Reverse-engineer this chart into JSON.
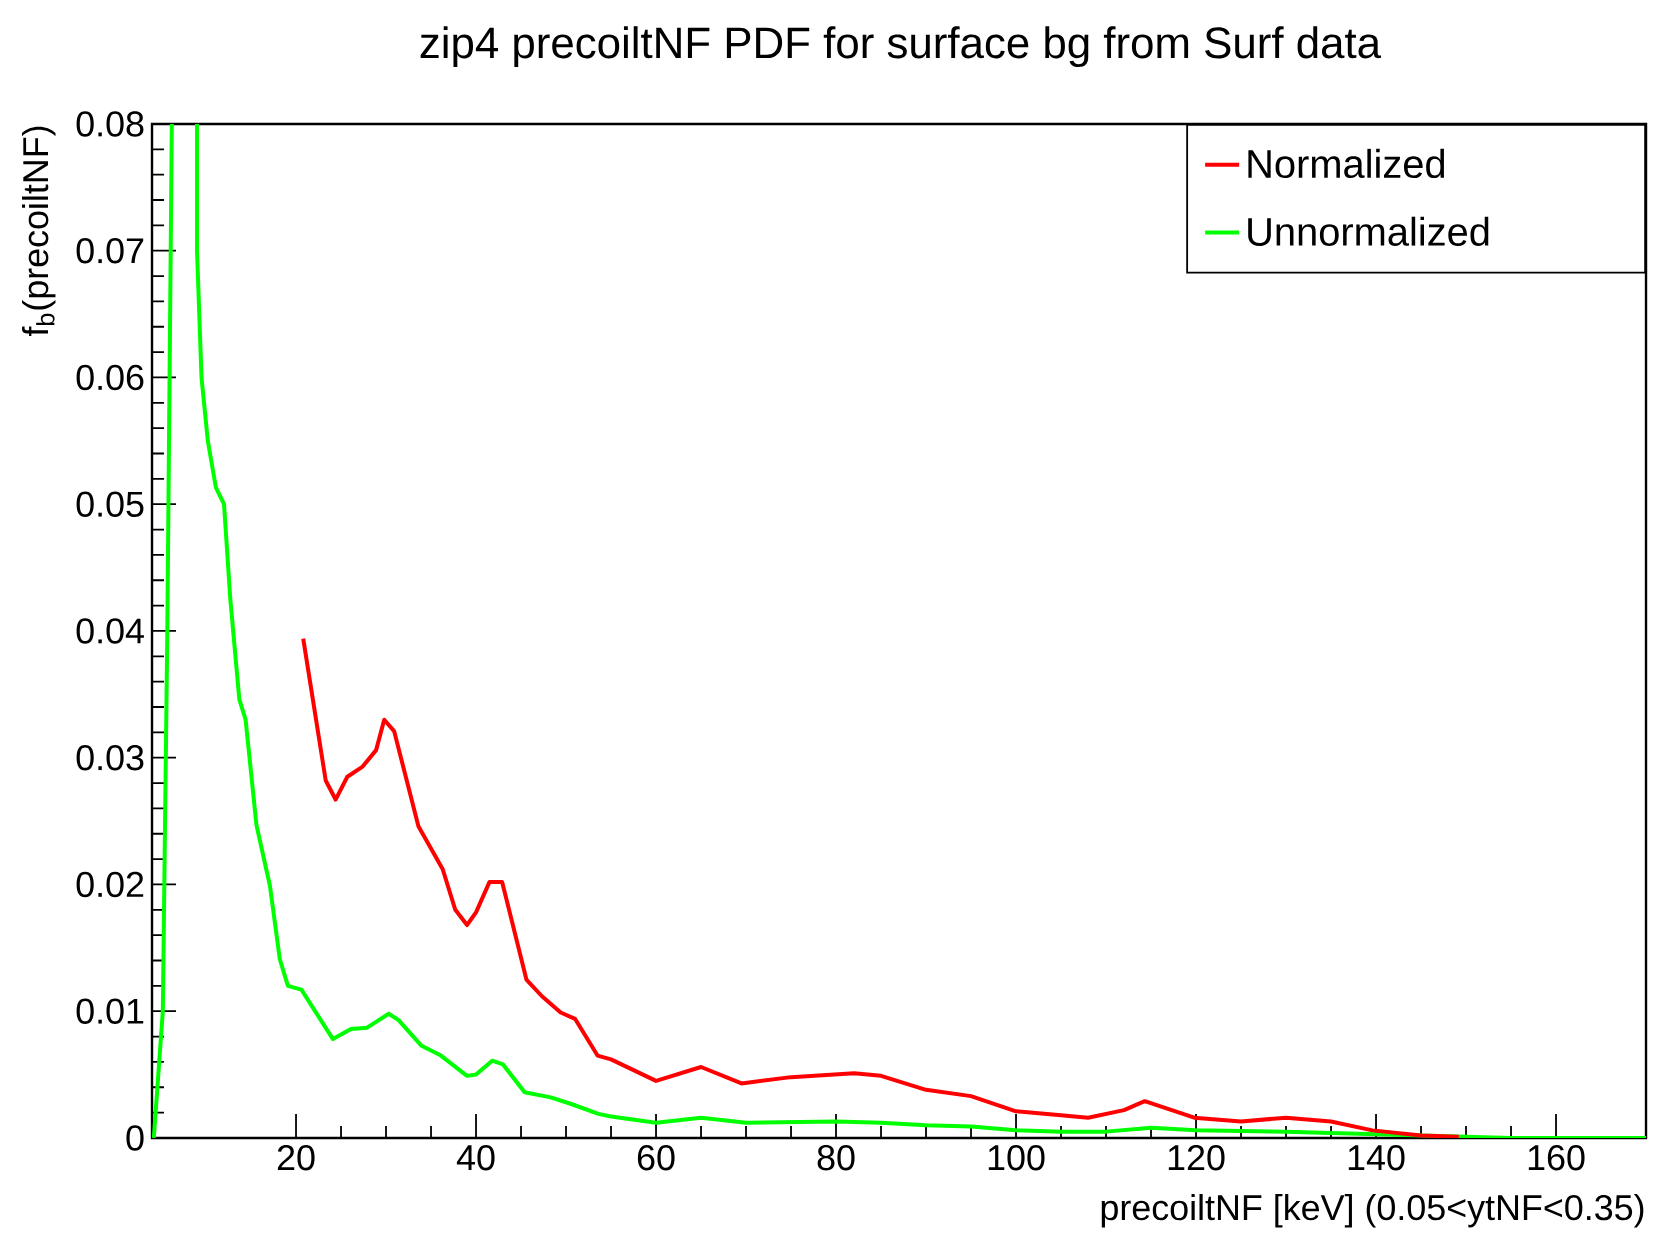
{
  "chart_data": {
    "type": "line",
    "title": "zip4 precoiltNF PDF for surface bg from Surf data",
    "xlabel": "precoiltNF [keV] (0.05<ytNF<0.35)",
    "ylabel": "f$_{b}$(precoiltNF)",
    "xlim": [
      4,
      170
    ],
    "ylim": [
      0,
      0.08
    ],
    "xticks": [
      20,
      40,
      60,
      80,
      100,
      120,
      140,
      160
    ],
    "yticks": [
      0,
      0.01,
      0.02,
      0.03,
      0.04,
      0.05,
      0.06,
      0.07,
      0.08
    ],
    "grid": false,
    "legend": "top right",
    "line_style": "solid",
    "series": [
      {
        "name": "Normalized",
        "color": "#ff0000",
        "x": [
          20.8,
          23.3,
          24.4,
          25.7,
          27.4,
          28.9,
          29.8,
          30.9,
          33.6,
          36.3,
          37.7,
          39.0,
          40.0,
          41.5,
          42.9,
          45.6,
          47.3,
          49.4,
          51.0,
          53.5,
          55,
          60,
          65,
          69.5,
          75,
          82,
          85,
          90,
          95,
          100,
          105,
          108,
          112,
          114.3,
          119.8,
          125,
          130,
          135,
          139.6,
          145,
          149.2
        ],
        "values": [
          0.0394,
          0.0282,
          0.0267,
          0.0285,
          0.0293,
          0.0306,
          0.033,
          0.0321,
          0.0246,
          0.0212,
          0.018,
          0.0168,
          0.0178,
          0.0202,
          0.0202,
          0.0125,
          0.0112,
          0.0099,
          0.0094,
          0.0065,
          0.0062,
          0.0045,
          0.0056,
          0.0043,
          0.0048,
          0.0051,
          0.0049,
          0.0038,
          0.0033,
          0.0021,
          0.0018,
          0.0016,
          0.0022,
          0.0029,
          0.0016,
          0.0013,
          0.0016,
          0.0013,
          0.0006,
          0.0002,
          0.0001
        ]
      },
      {
        "name": "Unnormalized",
        "color": "#00ff00",
        "x": [
          4.2,
          5.2,
          5.7,
          6.2,
          7.5,
          9.0,
          9.0,
          9.5,
          10.2,
          11.1,
          12.0,
          12.7,
          13.7,
          14.4,
          15.6,
          17.1,
          18.2,
          19.1,
          20.6,
          24.1,
          26.1,
          27.9,
          30.3,
          31.4,
          33.9,
          36.1,
          39.0,
          40.0,
          41.8,
          43.0,
          45.4,
          48.3,
          50.5,
          53.6,
          55,
          60,
          65,
          70,
          80,
          85,
          90,
          95,
          100,
          105,
          110,
          115,
          120,
          130,
          140,
          150,
          155,
          170
        ],
        "values": [
          0,
          0.01,
          0.04,
          0.08,
          null,
          0.08,
          0.07,
          0.06,
          0.055,
          0.0513,
          0.05,
          0.0425,
          0.0346,
          0.033,
          0.0247,
          0.0199,
          0.0141,
          0.012,
          0.0117,
          0.0078,
          0.0086,
          0.0087,
          0.0098,
          0.0093,
          0.0073,
          0.0065,
          0.0049,
          0.005,
          0.0061,
          0.0058,
          0.0036,
          0.0032,
          0.0027,
          0.0019,
          0.0017,
          0.0012,
          0.0016,
          0.0012,
          0.0013,
          0.0012,
          0.001,
          0.0009,
          0.0006,
          0.0005,
          0.0005,
          0.0008,
          0.0006,
          0.0005,
          0.0003,
          0.0001,
          0,
          0
        ]
      }
    ]
  }
}
